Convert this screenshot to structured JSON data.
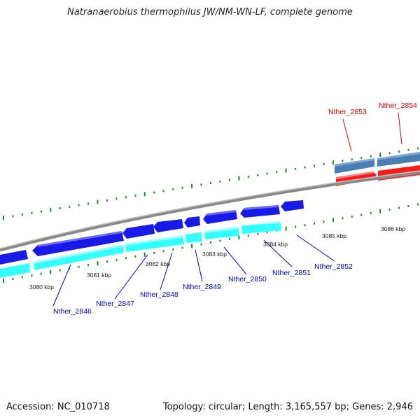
{
  "title": "Natranaerobius thermophilus JW/NM-WN-LF, complete genome",
  "footer": {
    "accession": "Accession: NC_010718",
    "stats": "Topology: circular; Length: 3,165,557 bp; Genes: 2,946"
  },
  "axis": {
    "ticks": [
      {
        "label": "3080 kbp"
      },
      {
        "label": "3081 kbp"
      },
      {
        "label": "3082 kbp"
      },
      {
        "label": "3083 kbp"
      },
      {
        "label": "3084 kbp"
      },
      {
        "label": "3085 kbp"
      },
      {
        "label": "3086 kbp"
      }
    ]
  },
  "genes": [
    {
      "label": "Nther_2846",
      "strand": "reverse",
      "color": "#0000ee"
    },
    {
      "label": "Nther_2847",
      "strand": "reverse",
      "color": "#0000ee"
    },
    {
      "label": "Nther_2848",
      "strand": "reverse",
      "color": "#0000ee"
    },
    {
      "label": "Nther_2849",
      "strand": "reverse",
      "color": "#0000ee"
    },
    {
      "label": "Nther_2850",
      "strand": "reverse",
      "color": "#0000ee"
    },
    {
      "label": "Nther_2851",
      "strand": "reverse",
      "color": "#0000ee"
    },
    {
      "label": "Nther_2852",
      "strand": "reverse",
      "color": "#0000ee"
    },
    {
      "label": "Nther_2853",
      "strand": "forward",
      "color": "#ee0000"
    },
    {
      "label": "Nther_2854",
      "strand": "forward",
      "color": "#ee0000"
    }
  ],
  "colors": {
    "reverse_cds": "#1a1ae6",
    "reverse_feature": "#33ffff",
    "forward_cds": "#ff1a1a",
    "forward_feature": "#4a7fb5",
    "backbone": "#8a8a8a",
    "tick": "#228b22",
    "reverse_label": "#0000cc",
    "forward_label": "#dd0000"
  }
}
